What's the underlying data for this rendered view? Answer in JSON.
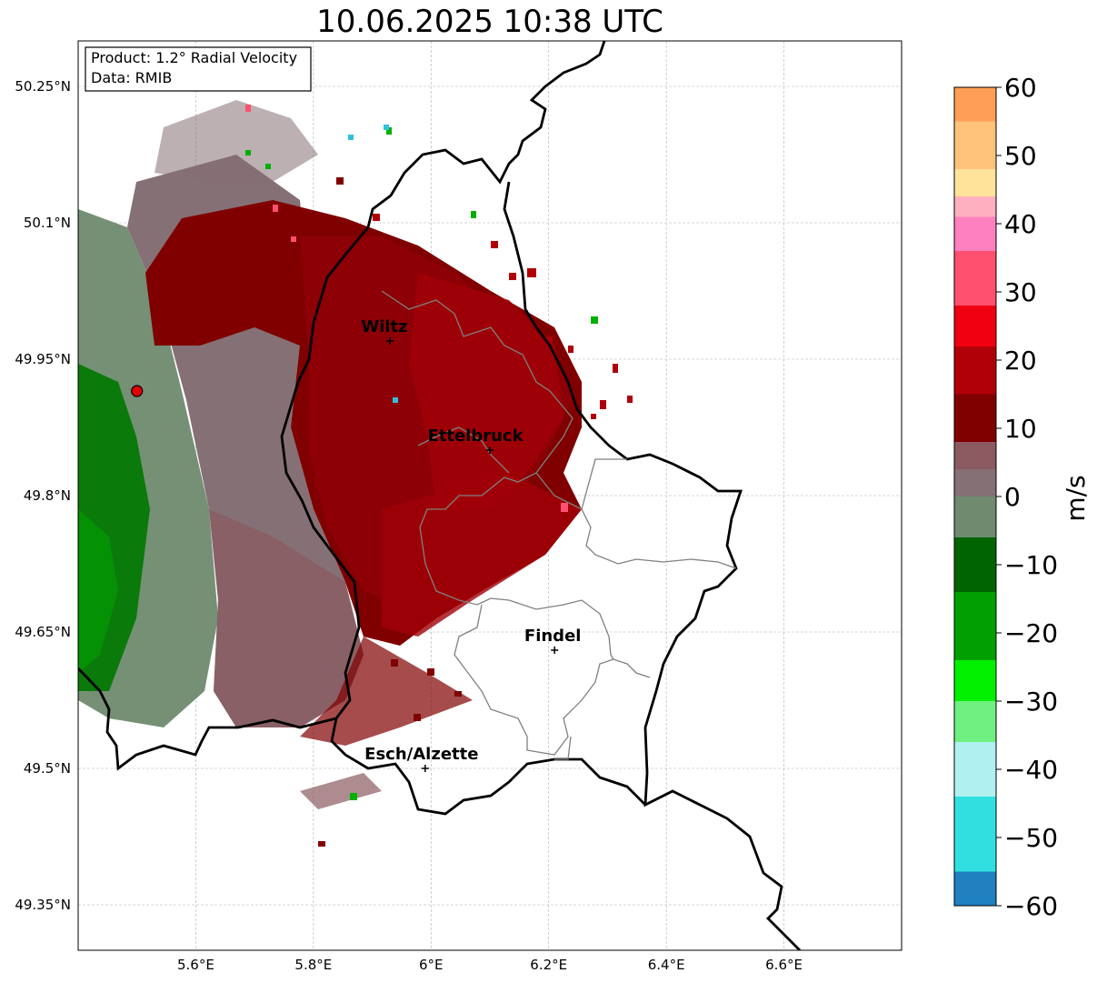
{
  "title": "10.06.2025 10:38 UTC",
  "info_box": {
    "product": "Product: 1.2° Radial Velocity",
    "data": "Data: RMIB"
  },
  "axes": {
    "lon_ticks": [
      "5.6°E",
      "5.8°E",
      "6°E",
      "6.2°E",
      "6.4°E",
      "6.6°E"
    ],
    "lat_ticks": [
      "50.25°N",
      "50.1°N",
      "49.95°N",
      "49.8°N",
      "49.65°N",
      "49.5°N",
      "49.35°N"
    ],
    "lon_values": [
      5.6,
      5.8,
      6.0,
      6.2,
      6.4,
      6.6
    ],
    "lat_values": [
      50.25,
      50.1,
      49.95,
      49.8,
      49.65,
      49.5,
      49.35
    ],
    "lon_range": [
      5.4,
      6.8
    ],
    "lat_range": [
      49.3,
      50.3
    ]
  },
  "cities": [
    {
      "name": "Wiltz",
      "lon": 5.93,
      "lat": 49.97
    },
    {
      "name": "Ettelbruck",
      "lon": 6.1,
      "lat": 49.85
    },
    {
      "name": "Findel",
      "lon": 6.21,
      "lat": 49.63
    },
    {
      "name": "Esch/Alzette",
      "lon": 5.99,
      "lat": 49.5
    }
  ],
  "radar_site": {
    "lon": 5.5,
    "lat": 49.915
  },
  "colorbar": {
    "label": "m/s",
    "ticks": [
      "60",
      "50",
      "40",
      "30",
      "20",
      "10",
      "0",
      "−10",
      "−20",
      "−30",
      "−40",
      "−50",
      "−60"
    ],
    "tick_values": [
      60,
      50,
      40,
      30,
      20,
      10,
      0,
      -10,
      -20,
      -30,
      -40,
      -50,
      -60
    ],
    "range": [
      -60,
      60
    ],
    "colors": {
      "orange": "#ff9f55",
      "light_orange": "#ffc27a",
      "yellow": "#ffe39a",
      "pink_light": "#ffb0c0",
      "pink": "#ff80c0",
      "rose": "#ff5070",
      "red": "#f00010",
      "dark_red": "#b00008",
      "maroon": "#800000",
      "mauve": "#8a5a60",
      "grey_mauve": "#857075",
      "grey_green": "#6f8a6f",
      "dark_green": "#006400",
      "green": "#00a000",
      "bright_green": "#00f000",
      "light_green": "#70f080",
      "light_cyan": "#b0f0f0",
      "cyan": "#30e0e0",
      "blue": "#2080c0"
    }
  }
}
